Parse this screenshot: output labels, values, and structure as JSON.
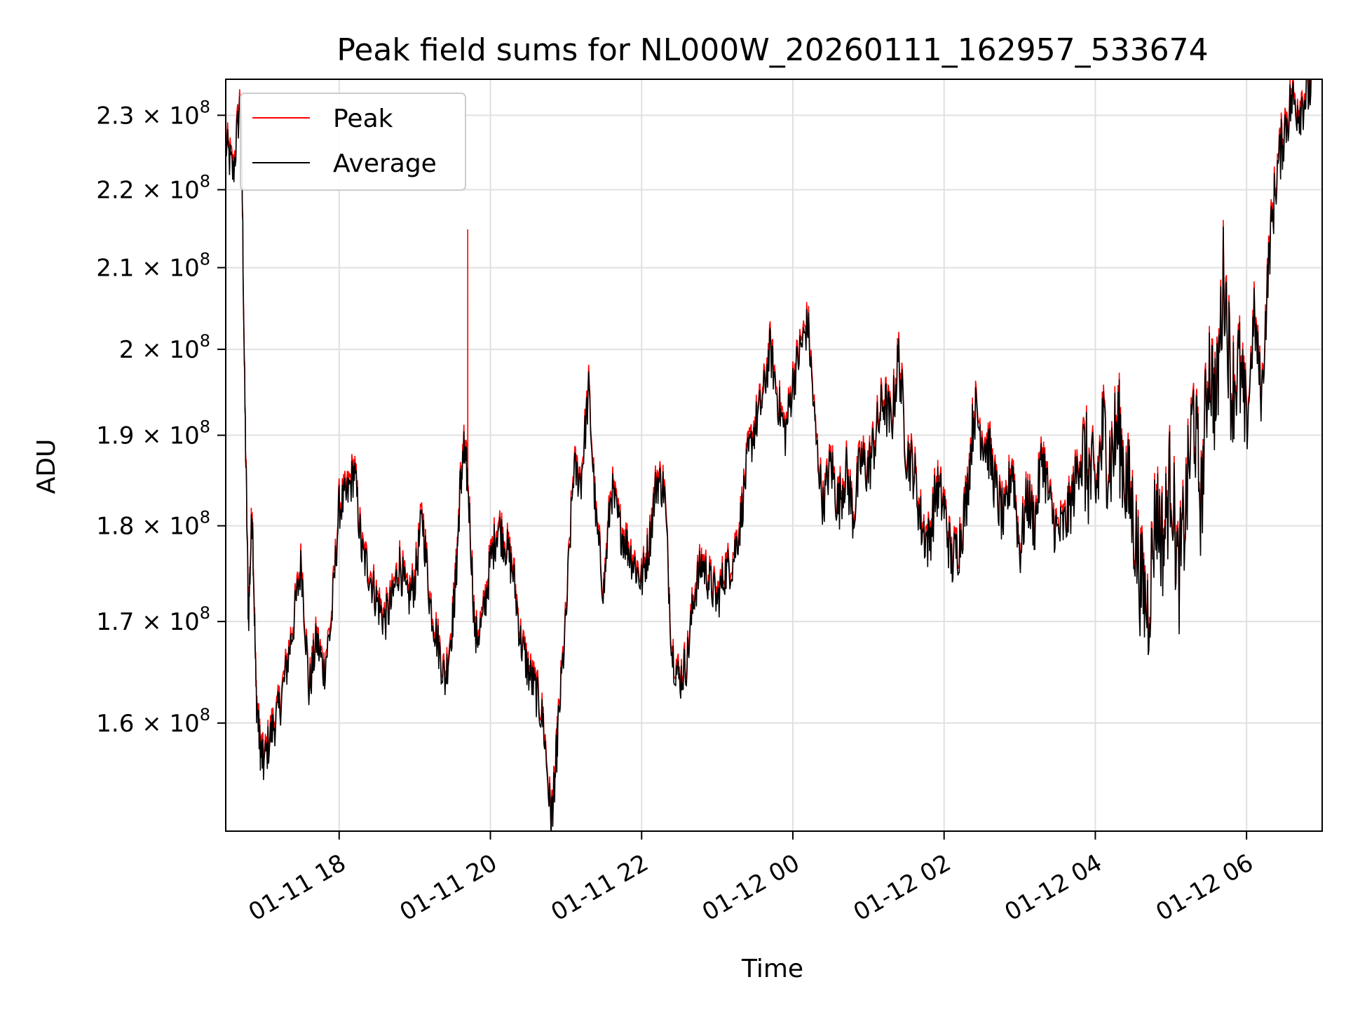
{
  "chart_data": {
    "type": "line",
    "title": "Peak field sums for NL000W_20260111_162957_533674",
    "xlabel": "Time",
    "ylabel": "ADU",
    "yscale": "log",
    "xlim": [
      16.5,
      31.0
    ],
    "ylim": [
      150000000,
      235000000
    ],
    "grid": true,
    "legend_position": "upper-left",
    "x_ticks": [
      {
        "value": 18,
        "label": "01-11 18"
      },
      {
        "value": 20,
        "label": "01-11 20"
      },
      {
        "value": 22,
        "label": "01-11 22"
      },
      {
        "value": 24,
        "label": "01-12 00"
      },
      {
        "value": 26,
        "label": "01-12 02"
      },
      {
        "value": 28,
        "label": "01-12 04"
      },
      {
        "value": 30,
        "label": "01-12 06"
      }
    ],
    "y_ticks": [
      {
        "value": 160000000,
        "mantissa": "1.6 × 10",
        "exp": "8"
      },
      {
        "value": 170000000,
        "mantissa": "1.7 × 10",
        "exp": "8"
      },
      {
        "value": 180000000,
        "mantissa": "1.8 × 10",
        "exp": "8"
      },
      {
        "value": 190000000,
        "mantissa": "1.9 × 10",
        "exp": "8"
      },
      {
        "value": 200000000,
        "mantissa": "2 × 10",
        "exp": "8"
      },
      {
        "value": 210000000,
        "mantissa": "2.1 × 10",
        "exp": "8"
      },
      {
        "value": 220000000,
        "mantissa": "2.2 × 10",
        "exp": "8"
      },
      {
        "value": 230000000,
        "mantissa": "2.3 × 10",
        "exp": "8"
      }
    ],
    "series": [
      {
        "name": "Peak",
        "color": "#ff0000"
      },
      {
        "name": "Average",
        "color": "#000000"
      }
    ],
    "x": [
      16.5,
      16.6,
      16.7,
      16.75,
      16.8,
      16.85,
      16.9,
      16.95,
      17.0,
      17.1,
      17.2,
      17.3,
      17.4,
      17.5,
      17.6,
      17.7,
      17.8,
      17.9,
      18.0,
      18.1,
      18.2,
      18.3,
      18.4,
      18.5,
      18.6,
      18.7,
      18.8,
      18.9,
      19.0,
      19.1,
      19.2,
      19.3,
      19.4,
      19.5,
      19.55,
      19.6,
      19.65,
      19.7,
      19.8,
      19.9,
      20.0,
      20.1,
      20.2,
      20.3,
      20.4,
      20.5,
      20.6,
      20.7,
      20.8,
      20.85,
      20.9,
      21.0,
      21.1,
      21.2,
      21.3,
      21.4,
      21.5,
      21.6,
      21.7,
      21.8,
      21.9,
      22.0,
      22.1,
      22.2,
      22.3,
      22.4,
      22.5,
      22.6,
      22.7,
      22.8,
      22.9,
      23.0,
      23.1,
      23.2,
      23.3,
      23.4,
      23.5,
      23.6,
      23.7,
      23.8,
      23.9,
      24.0,
      24.1,
      24.2,
      24.3,
      24.4,
      24.5,
      24.6,
      24.7,
      24.8,
      24.9,
      25.0,
      25.1,
      25.2,
      25.3,
      25.4,
      25.5,
      25.6,
      25.7,
      25.8,
      25.9,
      26.0,
      26.1,
      26.2,
      26.3,
      26.4,
      26.5,
      26.6,
      26.7,
      26.8,
      26.9,
      27.0,
      27.1,
      27.2,
      27.3,
      27.4,
      27.5,
      27.6,
      27.7,
      27.8,
      27.9,
      28.0,
      28.1,
      28.2,
      28.3,
      28.4,
      28.5,
      28.6,
      28.7,
      28.8,
      28.9,
      29.0,
      29.1,
      29.2,
      29.3,
      29.4,
      29.5,
      29.6,
      29.7,
      29.8,
      29.9,
      30.0,
      30.1,
      30.2,
      30.3,
      30.4,
      30.5,
      30.6,
      30.7,
      30.8,
      30.9
    ],
    "average": [
      226000000,
      222000000,
      233000000,
      195000000,
      170000000,
      182000000,
      163000000,
      158000000,
      156000000,
      159000000,
      161000000,
      165000000,
      170000000,
      176000000,
      163000000,
      168000000,
      165000000,
      170000000,
      182000000,
      183000000,
      186000000,
      177000000,
      175000000,
      172000000,
      170000000,
      172000000,
      176000000,
      172000000,
      174000000,
      181000000,
      172000000,
      168000000,
      164000000,
      170000000,
      175000000,
      184000000,
      188000000,
      185000000,
      168000000,
      170000000,
      176000000,
      180000000,
      178000000,
      175000000,
      168000000,
      165000000,
      163000000,
      160000000,
      151000000,
      154000000,
      160000000,
      170000000,
      186000000,
      185000000,
      195000000,
      180000000,
      173000000,
      184000000,
      180000000,
      178000000,
      176000000,
      174000000,
      178000000,
      185000000,
      184000000,
      167000000,
      164000000,
      166000000,
      173000000,
      176000000,
      174000000,
      172000000,
      175000000,
      176000000,
      180000000,
      187000000,
      191000000,
      194000000,
      200000000,
      194000000,
      190000000,
      196000000,
      200000000,
      203000000,
      190000000,
      182000000,
      187000000,
      182000000,
      186000000,
      181000000,
      187000000,
      186000000,
      190000000,
      194000000,
      191000000,
      199000000,
      188000000,
      186000000,
      180000000,
      178000000,
      184000000,
      182000000,
      176000000,
      178000000,
      183000000,
      193000000,
      190000000,
      188000000,
      183000000,
      180000000,
      187000000,
      177000000,
      183000000,
      180000000,
      188000000,
      182000000,
      179000000,
      180000000,
      183000000,
      188000000,
      186000000,
      183000000,
      190000000,
      187000000,
      191000000,
      185000000,
      181000000,
      174000000,
      171000000,
      182000000,
      178000000,
      186000000,
      174000000,
      182000000,
      193000000,
      182000000,
      199000000,
      193000000,
      210000000,
      195000000,
      198000000,
      190000000,
      204000000,
      194000000,
      212000000,
      222000000,
      228000000,
      232000000,
      231000000,
      233000000,
      235000000
    ],
    "peak_spike": {
      "x": 19.7,
      "value": 214000000
    }
  }
}
